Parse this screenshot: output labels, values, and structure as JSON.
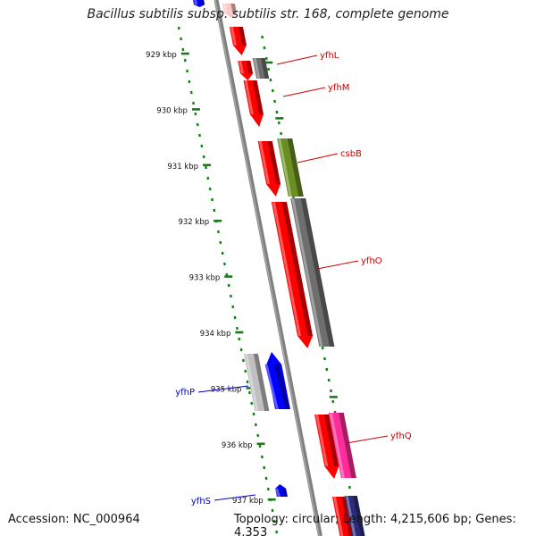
{
  "title": "Bacillus subtilis subsp. subtilis str. 168, complete genome",
  "accession_label": "Accession: NC_000964",
  "summary_label": "Topology: circular; Length: 4,215,606 bp; Genes: 4,353",
  "ticks": [
    {
      "label": "929 kbp",
      "kbp": 929
    },
    {
      "label": "930 kbp",
      "kbp": 930
    },
    {
      "label": "931 kbp",
      "kbp": 931
    },
    {
      "label": "932 kbp",
      "kbp": 932
    },
    {
      "label": "933 kbp",
      "kbp": 933
    },
    {
      "label": "934 kbp",
      "kbp": 934
    },
    {
      "label": "935 kbp",
      "kbp": 935
    },
    {
      "label": "936 kbp",
      "kbp": 936
    },
    {
      "label": "937 kbp",
      "kbp": 937
    }
  ],
  "gene_labels": [
    {
      "name": "yfhL",
      "color": "#cc0000"
    },
    {
      "name": "yfhM",
      "color": "#cc0000"
    },
    {
      "name": "csbB",
      "color": "#cc0000"
    },
    {
      "name": "yfhO",
      "color": "#cc0000"
    },
    {
      "name": "yfhQ",
      "color": "#cc0000"
    },
    {
      "name": "yfhP",
      "color": "#0000cc"
    },
    {
      "name": "yfhS",
      "color": "#0000cc"
    }
  ],
  "colors": {
    "backbone": "#808080",
    "tick_marks": "#1a7a1a",
    "red_gene": "#ff0000",
    "pink_gene": "#ff2d9a",
    "blue_gene": "#0000ff",
    "olive_gene": "#6b8e23",
    "gray_gene": "#6e6e6e",
    "light_gray_gene": "#c0c0c0",
    "navy_gene": "#2b2b7a"
  }
}
